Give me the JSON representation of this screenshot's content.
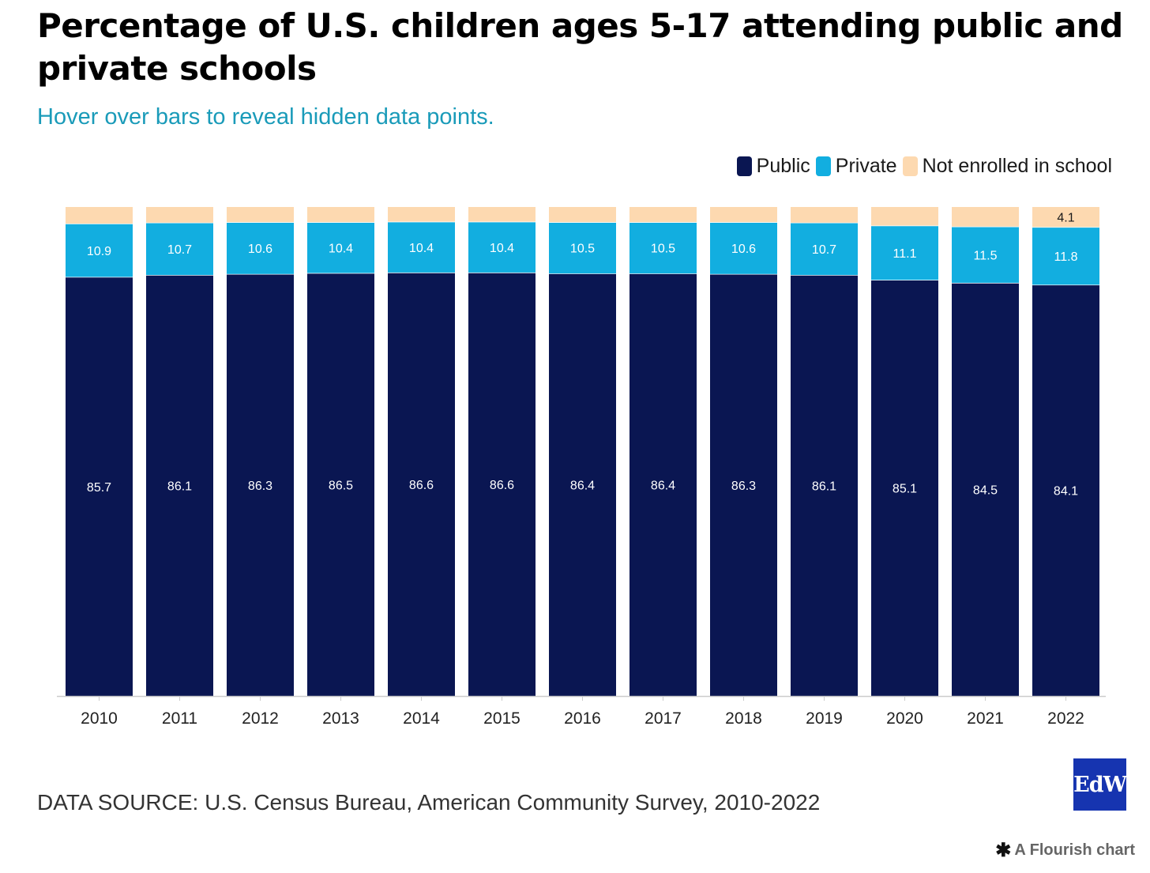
{
  "title": "Percentage of U.S. children ages 5-17 attending public and private schools",
  "subtitle": "Hover over bars to reveal hidden data points.",
  "legend": [
    {
      "label": "Public",
      "color": "#0a1652"
    },
    {
      "label": "Private",
      "color": "#12aee0"
    },
    {
      "label": "Not enrolled in school",
      "color": "#fdd9b0"
    }
  ],
  "source": "DATA SOURCE: U.S. Census Bureau, American Community Survey, 2010-2022",
  "logo_text": "EdW",
  "flourish_credit": "A Flourish chart",
  "flourish_icon": "asterisk-icon",
  "chart_data": {
    "type": "bar",
    "stacked": true,
    "categories": [
      "2010",
      "2011",
      "2012",
      "2013",
      "2014",
      "2015",
      "2016",
      "2017",
      "2018",
      "2019",
      "2020",
      "2021",
      "2022"
    ],
    "series": [
      {
        "name": "Public",
        "color": "#0a1652",
        "values": [
          85.7,
          86.1,
          86.3,
          86.5,
          86.6,
          86.6,
          86.4,
          86.4,
          86.3,
          86.1,
          85.1,
          84.5,
          84.1
        ],
        "labels": [
          "85.7",
          "86.1",
          "86.3",
          "86.5",
          "86.6",
          "86.6",
          "86.4",
          "86.4",
          "86.3",
          "86.1",
          "85.1",
          "84.5",
          "84.1"
        ]
      },
      {
        "name": "Private",
        "color": "#12aee0",
        "values": [
          10.9,
          10.7,
          10.6,
          10.4,
          10.4,
          10.4,
          10.5,
          10.5,
          10.6,
          10.7,
          11.1,
          11.5,
          11.8
        ],
        "labels": [
          "10.9",
          "10.7",
          "10.6",
          "10.4",
          "10.4",
          "10.4",
          "10.5",
          "10.5",
          "10.6",
          "10.7",
          "11.1",
          "11.5",
          "11.8"
        ]
      },
      {
        "name": "Not enrolled in school",
        "color": "#fdd9b0",
        "values": [
          3.4,
          3.2,
          3.1,
          3.1,
          3.0,
          3.0,
          3.1,
          3.1,
          3.1,
          3.2,
          3.8,
          4.0,
          4.1
        ],
        "labels": [
          "",
          "",
          "",
          "",
          "",
          "",
          "",
          "",
          "",
          "",
          "",
          "",
          "4.1"
        ]
      }
    ],
    "ylim": [
      0,
      100
    ],
    "grid": false,
    "legend_position": "top-right",
    "xlabel": "",
    "ylabel": ""
  }
}
